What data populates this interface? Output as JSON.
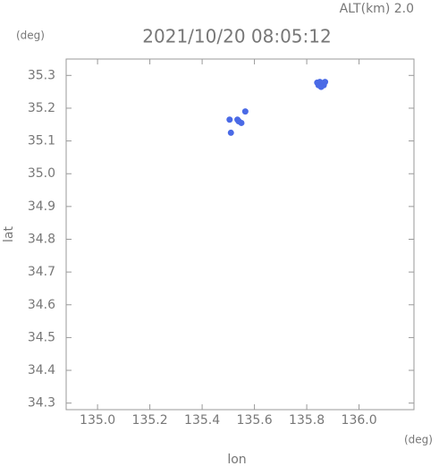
{
  "chart_data": {
    "type": "scatter",
    "title": "2021/10/20 08:05:12",
    "subtitle": "ALT(km) 2.0",
    "y_unit": "(deg)",
    "x_unit": "(deg)",
    "xlabel": "lon",
    "ylabel": "lat",
    "xlim": [
      134.88,
      136.21
    ],
    "ylim": [
      34.28,
      35.35
    ],
    "xticks": [
      {
        "value": 135.0,
        "label": "135.0"
      },
      135.2,
      135.4,
      135.6,
      135.8,
      {
        "value": 136.0,
        "label": "136.0"
      }
    ],
    "yticks": [
      34.3,
      34.4,
      34.5,
      34.6,
      34.7,
      34.8,
      34.9,
      {
        "value": 35.0,
        "label": "35.0"
      },
      35.1,
      35.2,
      35.3
    ],
    "series": [
      {
        "color": "#4a6ae6",
        "x": [
          135.85,
          135.86,
          135.845,
          135.865,
          135.855,
          135.84,
          135.87,
          135.54,
          135.55,
          135.535,
          135.565,
          135.51,
          135.505
        ],
        "y": [
          35.28,
          35.275,
          35.27,
          35.27,
          35.265,
          35.278,
          35.28,
          35.16,
          35.155,
          35.165,
          35.19,
          35.125,
          35.165
        ]
      }
    ]
  }
}
